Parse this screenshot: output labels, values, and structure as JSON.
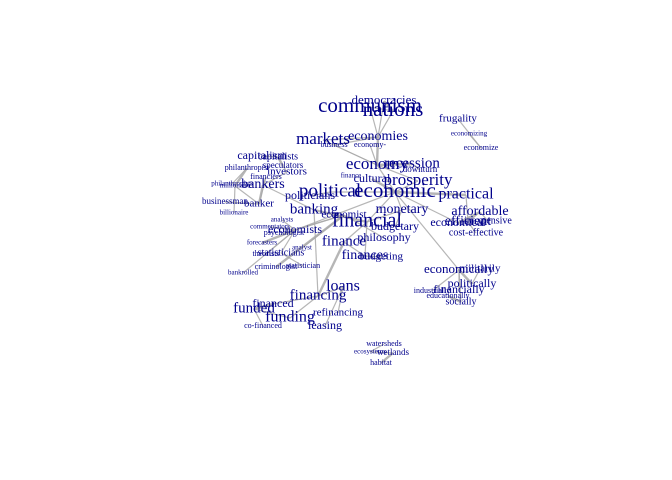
{
  "colors": {
    "label": "#00008B",
    "edge": "#A9A9A9",
    "background": "#FFFFFF"
  },
  "nodes": [
    {
      "id": "democracies",
      "label": "democracies"
    },
    {
      "id": "communism",
      "label": "communism"
    },
    {
      "id": "nations",
      "label": "nations"
    },
    {
      "id": "frugality",
      "label": "frugality"
    },
    {
      "id": "economizing",
      "label": "economizing"
    },
    {
      "id": "economize",
      "label": "economize"
    },
    {
      "id": "markets",
      "label": "markets"
    },
    {
      "id": "economies",
      "label": "economies"
    },
    {
      "id": "business",
      "label": "business"
    },
    {
      "id": "economy_dash",
      "label": "economy-"
    },
    {
      "id": "economy",
      "label": "economy"
    },
    {
      "id": "recession",
      "label": "recession"
    },
    {
      "id": "downturn",
      "label": "downturn"
    },
    {
      "id": "capitalism",
      "label": "capitalism"
    },
    {
      "id": "capitalists",
      "label": "capitalists"
    },
    {
      "id": "speculators",
      "label": "speculators"
    },
    {
      "id": "investors",
      "label": "investors"
    },
    {
      "id": "philanthropist",
      "label": "philanthropist"
    },
    {
      "id": "financiers",
      "label": "financiers"
    },
    {
      "id": "millionaire",
      "label": "millionaire"
    },
    {
      "id": "philanthropists",
      "label": "philanthropists"
    },
    {
      "id": "billionaire",
      "label": "billionaire"
    },
    {
      "id": "businessman",
      "label": "businessman"
    },
    {
      "id": "bankers",
      "label": "bankers"
    },
    {
      "id": "banker",
      "label": "banker"
    },
    {
      "id": "banking",
      "label": "banking"
    },
    {
      "id": "politicians",
      "label": "politicians"
    },
    {
      "id": "political",
      "label": "political"
    },
    {
      "id": "economic",
      "label": "economic"
    },
    {
      "id": "prosperity",
      "label": "prosperity"
    },
    {
      "id": "cultural",
      "label": "cultural"
    },
    {
      "id": "finance_sm",
      "label": "finance"
    },
    {
      "id": "practical",
      "label": "practical"
    },
    {
      "id": "affordable",
      "label": "affordable"
    },
    {
      "id": "efficient",
      "label": "efficient"
    },
    {
      "id": "inexpensive",
      "label": "inexpensive"
    },
    {
      "id": "cost_effective",
      "label": "cost-effective"
    },
    {
      "id": "economical",
      "label": "economical"
    },
    {
      "id": "financial",
      "label": "financial"
    },
    {
      "id": "economically",
      "label": "economically"
    },
    {
      "id": "monetary",
      "label": "monetary"
    },
    {
      "id": "budgetary",
      "label": "budgetary"
    },
    {
      "id": "economist",
      "label": "economist"
    },
    {
      "id": "philosophy",
      "label": "philosophy"
    },
    {
      "id": "finance",
      "label": "finance"
    },
    {
      "id": "finances",
      "label": "finances"
    },
    {
      "id": "budgeting",
      "label": "budgeting"
    },
    {
      "id": "analysts",
      "label": "analysts"
    },
    {
      "id": "commentators",
      "label": "commentators"
    },
    {
      "id": "psychologist",
      "label": "psychologist"
    },
    {
      "id": "economists",
      "label": "economists"
    },
    {
      "id": "analyst",
      "label": "analyst"
    },
    {
      "id": "forecasters",
      "label": "forecasters"
    },
    {
      "id": "theorists",
      "label": "theorists"
    },
    {
      "id": "statisticians",
      "label": "statisticians"
    },
    {
      "id": "criminologist",
      "label": "criminologist"
    },
    {
      "id": "statistician",
      "label": "statistician"
    },
    {
      "id": "bankrolled",
      "label": "bankrolled"
    },
    {
      "id": "militarily",
      "label": "militarily"
    },
    {
      "id": "politically",
      "label": "politically"
    },
    {
      "id": "industrially",
      "label": "industrially"
    },
    {
      "id": "financially",
      "label": "financially"
    },
    {
      "id": "educationally",
      "label": "educationally"
    },
    {
      "id": "socially",
      "label": "socially"
    },
    {
      "id": "loans",
      "label": "loans"
    },
    {
      "id": "financing",
      "label": "financing"
    },
    {
      "id": "financed",
      "label": "financed"
    },
    {
      "id": "funded",
      "label": "funded"
    },
    {
      "id": "funding",
      "label": "funding"
    },
    {
      "id": "refinancing",
      "label": "refinancing"
    },
    {
      "id": "leasing",
      "label": "leasing"
    },
    {
      "id": "co_financed",
      "label": "co-financed"
    },
    {
      "id": "watersheds",
      "label": "watersheds"
    },
    {
      "id": "ecosystems",
      "label": "ecosystems"
    },
    {
      "id": "wetlands",
      "label": "wetlands"
    },
    {
      "id": "habitat",
      "label": "habitat"
    }
  ],
  "edges": [
    [
      "democracies",
      "nations"
    ],
    [
      "communism",
      "nations"
    ],
    [
      "democracies",
      "economies"
    ],
    [
      "nations",
      "economies"
    ],
    [
      "communism",
      "economies"
    ],
    [
      "economies",
      "economy"
    ],
    [
      "markets",
      "economies"
    ],
    [
      "economies",
      "business"
    ],
    [
      "economy_dash",
      "economy"
    ],
    [
      "economy",
      "economic"
    ],
    [
      "economy",
      "recession"
    ],
    [
      "recession",
      "downturn"
    ],
    [
      "economy",
      "prosperity"
    ],
    [
      "economic",
      "prosperity"
    ],
    [
      "economic",
      "political"
    ],
    [
      "economic",
      "cultural"
    ],
    [
      "economic",
      "financial"
    ],
    [
      "economic",
      "monetary"
    ],
    [
      "economic",
      "economically"
    ],
    [
      "economic",
      "economical"
    ],
    [
      "economic",
      "practical"
    ],
    [
      "economic",
      "economists"
    ],
    [
      "political",
      "politicians"
    ],
    [
      "financial",
      "finance"
    ],
    [
      "financial",
      "finances"
    ],
    [
      "financial",
      "banking"
    ],
    [
      "financial",
      "monetary"
    ],
    [
      "monetary",
      "budgetary"
    ],
    [
      "finance",
      "finances"
    ],
    [
      "finances",
      "budgeting"
    ],
    [
      "finance",
      "financing"
    ],
    [
      "financing",
      "loans"
    ],
    [
      "financing",
      "funding"
    ],
    [
      "financing",
      "financed"
    ],
    [
      "funding",
      "funded"
    ],
    [
      "financed",
      "funded"
    ],
    [
      "funded",
      "co_financed"
    ],
    [
      "loans",
      "refinancing"
    ],
    [
      "loans",
      "leasing"
    ],
    [
      "banking",
      "bankers"
    ],
    [
      "bankers",
      "banker"
    ],
    [
      "banker",
      "businessman"
    ],
    [
      "banker",
      "financiers"
    ],
    [
      "bankers",
      "investors"
    ],
    [
      "capitalism",
      "capitalists"
    ],
    [
      "capitalists",
      "speculators"
    ],
    [
      "investors",
      "speculators"
    ],
    [
      "bankers",
      "financiers"
    ],
    [
      "banker",
      "millionaire"
    ],
    [
      "millionaire",
      "billionaire"
    ],
    [
      "philanthropist",
      "millionaire"
    ],
    [
      "philanthropists",
      "philanthropist"
    ],
    [
      "economists",
      "analysts"
    ],
    [
      "economists",
      "commentators"
    ],
    [
      "economists",
      "economist"
    ],
    [
      "economists",
      "forecasters"
    ],
    [
      "economists",
      "theorists"
    ],
    [
      "economists",
      "statisticians"
    ],
    [
      "statisticians",
      "statistician"
    ],
    [
      "economist",
      "psychologist"
    ],
    [
      "economist",
      "criminologist"
    ],
    [
      "economist",
      "analyst"
    ],
    [
      "economist",
      "philosophy"
    ],
    [
      "economists",
      "bankrolled"
    ],
    [
      "banking",
      "financing"
    ],
    [
      "economical",
      "affordable"
    ],
    [
      "affordable",
      "inexpensive"
    ],
    [
      "affordable",
      "efficient"
    ],
    [
      "efficient",
      "cost_effective"
    ],
    [
      "practical",
      "efficient"
    ],
    [
      "economically",
      "politically"
    ],
    [
      "politically",
      "militarily"
    ],
    [
      "economically",
      "financially"
    ],
    [
      "economically",
      "industrially"
    ],
    [
      "economically",
      "socially"
    ],
    [
      "socially",
      "educationally"
    ],
    [
      "economizing",
      "economize"
    ],
    [
      "frugality",
      "economize"
    ],
    [
      "watersheds",
      "ecosystems"
    ],
    [
      "ecosystems",
      "wetlands"
    ],
    [
      "wetlands",
      "habitat"
    ],
    [
      "markets",
      "economy"
    ],
    [
      "business",
      "economy"
    ]
  ]
}
